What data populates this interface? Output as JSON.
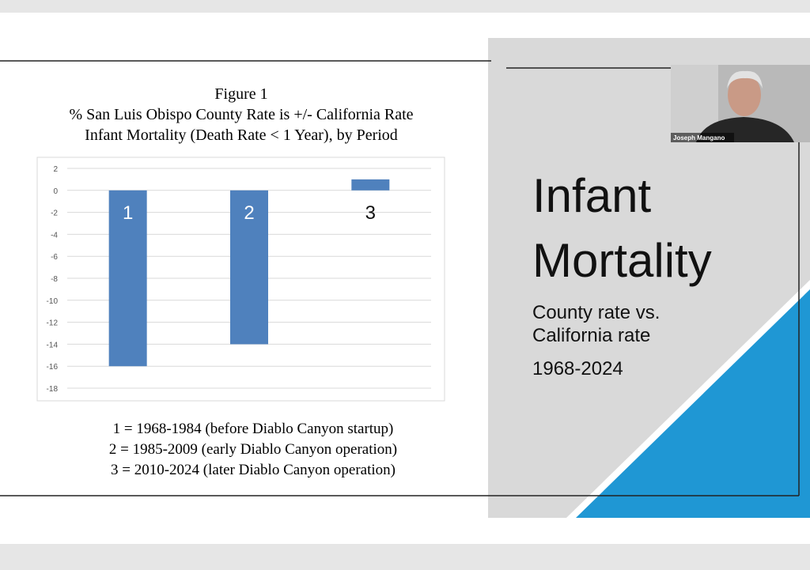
{
  "chart_data": {
    "type": "bar",
    "title": "Figure 1",
    "subtitle": [
      "% San Luis Obispo County Rate is +/- California Rate",
      "Infant Mortality (Death Rate < 1 Year), by Period"
    ],
    "categories": [
      "1",
      "2",
      "3"
    ],
    "values": [
      -16,
      -14,
      1
    ],
    "color": "#4f81bd",
    "ylim": [
      -18,
      2
    ],
    "yticks": [
      -18,
      -16,
      -14,
      -12,
      -10,
      -8,
      -6,
      -4,
      -2,
      0,
      2
    ],
    "grid": true,
    "notes": [
      "1 = 1968-1984 (before Diablo Canyon startup)",
      "2 = 1985-2009 (early Diablo Canyon operation)",
      "3 = 2010-2024 (later Diablo Canyon operation)"
    ]
  },
  "slide": {
    "title_lines": [
      "Infant",
      "Mortality"
    ],
    "subtitle_lines": [
      "County rate vs.",
      "California rate"
    ],
    "period": "1968-2024"
  },
  "video_tile": {
    "name": "Joseph Mangano"
  }
}
